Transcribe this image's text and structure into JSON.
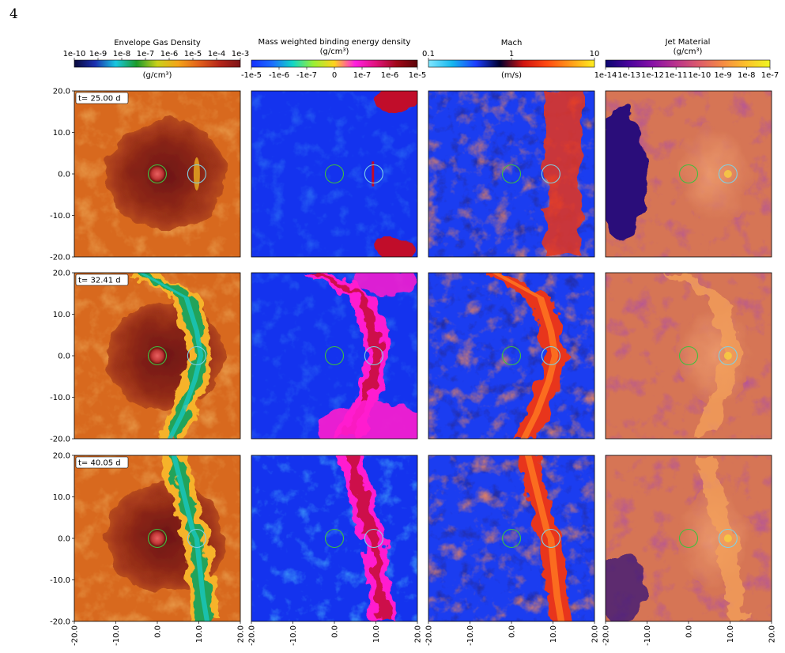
{
  "page_number": "4",
  "colorbars": [
    {
      "title": "Envelope Gas Density",
      "subtitle": "",
      "ticks": [
        "1e-10",
        "1e-9",
        "1e-8",
        "1e-7",
        "1e-6",
        "1e-5",
        "1e-4",
        "1e-3"
      ],
      "unit": "(g/cm³)",
      "colors": [
        "#0a0a3c",
        "#1b2fb0",
        "#18c7e0",
        "#1c9a2a",
        "#c9d11a",
        "#f4a418",
        "#e2611b",
        "#b52619",
        "#7e1418"
      ]
    },
    {
      "title": "Mass weighted binding energy density",
      "subtitle": "(g/cm³)",
      "ticks": [
        "-1e-5",
        "-1e-6",
        "-1e-7",
        "0",
        "1e-7",
        "1e-6",
        "1e-5"
      ],
      "unit": "",
      "colors": [
        "#1530ff",
        "#1b6cff",
        "#12d6c5",
        "#9af034",
        "#ffd21d",
        "#ff1fe0",
        "#e0127c",
        "#a00818",
        "#5c0408"
      ]
    },
    {
      "title": "Mach",
      "subtitle": "",
      "ticks": [
        "0.1",
        "1",
        "10"
      ],
      "unit": "(m/s)",
      "colors": [
        "#7fe6ff",
        "#15b7ee",
        "#1b3dff",
        "#000030",
        "#d01410",
        "#ff4a12",
        "#ff9a1a",
        "#ffee20"
      ]
    },
    {
      "title": "Jet Material",
      "subtitle": "(g/cm³)",
      "ticks": [
        "1e-14",
        "1e-13",
        "1e-12",
        "1e-11",
        "1e-10",
        "1e-9",
        "1e-8",
        "1e-7"
      ],
      "unit": "",
      "colors": [
        "#0b0670",
        "#4a049c",
        "#8711a6",
        "#b9338c",
        "#dd5c6a",
        "#f58b43",
        "#fcc22a",
        "#f0f622"
      ]
    }
  ],
  "time_labels": [
    "t= 25.00 d",
    "t= 32.41 d",
    "t= 40.05 d"
  ],
  "y_ticks": [
    "20.0",
    "10.0",
    "0.0",
    "-10.0",
    "-20.0"
  ],
  "x_ticks": [
    "-20.0",
    "-10.0",
    "0.0",
    "10.0",
    "20.0"
  ],
  "panel_colors": {
    "density_bg": "#d8691e",
    "density_dark": "#7a1a18",
    "density_hot": "#f6b32a",
    "density_jet": "#22a35a",
    "energy_bg": "#1433ee",
    "energy_jet": "#ff1fcf",
    "energy_core": "#c10a2a",
    "mach_bg": "#1b3df0",
    "mach_hot": "#e8361a",
    "mach_cold": "#0b0c55",
    "jet_bg": "#d67555",
    "jet_dark": "#2c0a7a",
    "jet_hot": "#f5a25a",
    "star_circle": "#3fbf3f",
    "companion_circle": "#7fd2e6"
  }
}
